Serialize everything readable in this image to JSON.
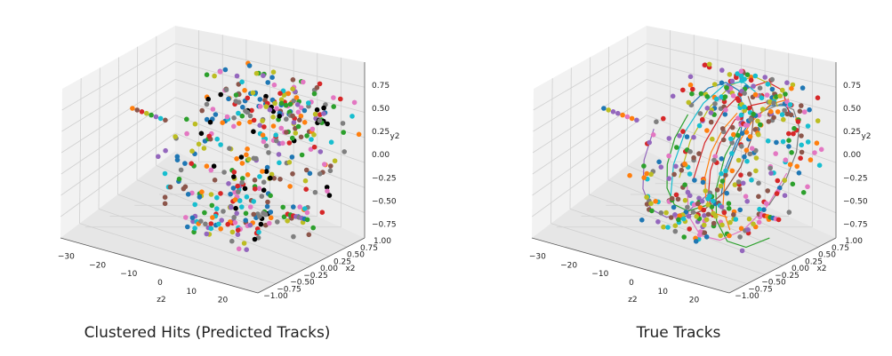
{
  "chart_data": [
    {
      "type": "scatter3d",
      "title": "Clustered Hits (Predicted Tracks)",
      "xlabel": "z2",
      "ylabel": "x2",
      "zlabel": "y2",
      "xticks": [
        "−30",
        "−20",
        "−10",
        "0",
        "10",
        "20"
      ],
      "yticks": [
        "−1.00",
        "−0.75",
        "−0.50",
        "−0.25",
        "0.00",
        "0.25",
        "0.50",
        "0.75",
        "1.00"
      ],
      "zticks": [
        "−0.75",
        "−0.50",
        "−0.25",
        "0.00",
        "0.25",
        "0.50",
        "0.75"
      ],
      "xlim": [
        -35,
        28
      ],
      "ylim": [
        -1.0,
        1.0
      ],
      "zlim": [
        -1.0,
        1.0
      ],
      "grid": true,
      "lines": false,
      "description_colors": [
        "#1f77b4",
        "#ff7f0e",
        "#2ca02c",
        "#d62728",
        "#9467bd",
        "#8c564b",
        "#e377c2",
        "#7f7f7f",
        "#bcbd22",
        "#17becf",
        "#000000"
      ]
    },
    {
      "type": "scatter3d",
      "title": "True Tracks",
      "xlabel": "z2",
      "ylabel": "x2",
      "zlabel": "y2",
      "xticks": [
        "−30",
        "−20",
        "−10",
        "0",
        "10",
        "20"
      ],
      "yticks": [
        "−1.00",
        "−0.75",
        "−0.50",
        "−0.25",
        "0.00",
        "0.25",
        "0.50",
        "0.75",
        "1.00"
      ],
      "zticks": [
        "−0.75",
        "−0.50",
        "−0.25",
        "0.00",
        "0.25",
        "0.50",
        "0.75"
      ],
      "xlim": [
        -35,
        28
      ],
      "ylim": [
        -1.0,
        1.0
      ],
      "zlim": [
        -1.0,
        1.0
      ],
      "grid": true,
      "lines": true,
      "description_colors": [
        "#1f77b4",
        "#ff7f0e",
        "#2ca02c",
        "#d62728",
        "#9467bd",
        "#8c564b",
        "#e377c2",
        "#7f7f7f",
        "#bcbd22",
        "#17becf"
      ]
    }
  ]
}
